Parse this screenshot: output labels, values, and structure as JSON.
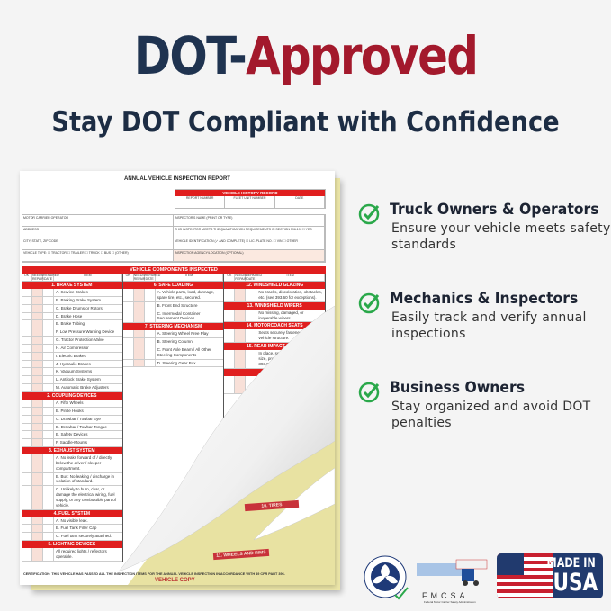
{
  "headline": {
    "part1": "DOT-",
    "part2": "Approved"
  },
  "subheadline": "Stay DOT Compliant with Confidence",
  "colors": {
    "navy": "#1f3350",
    "crimson": "#a3192c",
    "check": "#2aa84a",
    "form_red": "#e01e1e"
  },
  "form": {
    "title": "ANNUAL VEHICLE INSPECTION REPORT",
    "history": {
      "title": "VEHICLE HISTORY RECORD",
      "cols": [
        "REPORT NUMBER",
        "FLEET UNIT NUMBER",
        "DATE"
      ]
    },
    "fields": [
      "MOTOR CARRIER OPERATOR",
      "INSPECTOR'S NAME (PRINT OR TYPE)",
      "ADDRESS",
      "THIS INSPECTOR MEETS THE QUALIFICATION REQUIREMENTS IN SECTION 396.19. ☐ YES",
      "CITY, STATE, ZIP CODE",
      "VEHICLE IDENTIFICATION (✓ AND COMPLETE) ☐ LIC. PLATE NO. ☐ VIN ☐ OTHER",
      "VEHICLE TYPE: ☐ TRACTOR ☐ TRAILER ☐ TRUCK ☐ BUS ☐ (OTHER)",
      "INSPECTION AGENCY/LOCATION (OPTIONAL)"
    ],
    "components_title": "VEHICLE COMPONENTS INSPECTED",
    "col_headers": [
      "OK",
      "NEEDS REPAIR",
      "REPAIRED DATE",
      "ITEM"
    ],
    "columns": [
      [
        {
          "section": "1. BRAKE SYSTEM",
          "items": [
            "A. Service Brakes",
            "B. Parking Brake System",
            "C. Brake Drums or Rotors",
            "D. Brake Hose",
            "E. Brake Tubing",
            "F. Low Pressure Warning Device",
            "G. Tractor Protection Valve",
            "H. Air Compressor",
            "I. Electric Brakes",
            "J. Hydraulic Brakes",
            "K. Vacuum Systems",
            "L. Antilock Brake System",
            "M. Automatic Brake Adjusters"
          ]
        },
        {
          "section": "2. COUPLING DEVICES",
          "items": [
            "A. Fifth Wheels",
            "B. Pintle Hooks",
            "C. Drawbar / Towbar Eye",
            "D. Drawbar / Towbar Tongue",
            "E. Safety Devices",
            "F. Saddle-Mounts"
          ]
        },
        {
          "section": "3. EXHAUST SYSTEM",
          "items": [
            "A. No leaks forward of / directly below the driver / sleeper compartment.",
            "B. Bus: No leaking / discharge in violation of standard.",
            "C. Unlikely to burn, char, or damage the electrical wiring, fuel supply, or any combustible part of vehicle."
          ]
        },
        {
          "section": "4. FUEL SYSTEM",
          "items": [
            "A. No visible leak.",
            "B. Fuel Tank Filler Cap",
            "C. Fuel tank securely attached."
          ]
        },
        {
          "section": "5. LIGHTING DEVICES",
          "items": [
            "All required lights / reflectors operable."
          ]
        }
      ],
      [
        {
          "section": "6. SAFE LOADING",
          "items": [
            "A. Vehicle parts, load, dunnage, spare tire, etc., secured.",
            "B. Front End Structure",
            "C. Intermodal Container Securement Devices"
          ]
        },
        {
          "section": "7. STEERING MECHANISM",
          "items": [
            "A. Steering Wheel Free Play",
            "B. Steering Column",
            "C. Front Axle Beam / All Other Steering Components",
            "D. Steering Gear Box"
          ]
        }
      ],
      [
        {
          "section": "12. WINDSHIELD GLAZING",
          "items": [
            "No cracks, discoloration, obstacles, etc. (see 393.60 for exceptions)."
          ]
        },
        {
          "section": "13. WINDSHIELD WIPERS",
          "items": [
            "No missing, damaged, or inoperable wipers."
          ]
        },
        {
          "section": "14. MOTORCOACH SEATS",
          "items": [
            "Seats securely fastened to the vehicle structure."
          ]
        },
        {
          "section": "15. REAR IMPACT GUARD",
          "items": [
            "In place, securely attached, proper size, proper placement (see 393.86)."
          ]
        },
        {
          "section": "16. OTHER",
          "items": [
            "List any other condition(s) which may prevent safe operation of this vehicle."
          ]
        }
      ]
    ],
    "back_sections": [
      "10. TIRES",
      "11. WHEELS AND RIMS"
    ],
    "certification": "CERTIFICATION: THIS VEHICLE HAS PASSED ALL THE INSPECTION ITEMS FOR THE ANNUAL VEHICLE INSPECTION IN ACCORDANCE WITH 49 CFR PART 396.",
    "copy_label": "VEHICLE COPY"
  },
  "features": [
    {
      "title": "Truck Owners & Operators",
      "desc": "Ensure your vehicle meets safety standards",
      "icon": "check-circle-icon"
    },
    {
      "title": "Mechanics & Inspectors",
      "desc": "Easily track and verify annual inspections",
      "icon": "check-circle-icon"
    },
    {
      "title": "Business Owners",
      "desc": "Stay organized and avoid DOT penalties",
      "icon": "check-circle-icon"
    }
  ],
  "badges": {
    "dot_seal": "DEPARTMENT OF TRANSPORTATION · UNITED STATES OF AMERICA",
    "fmcsa": "FMCSA",
    "fmcsa_sub": "Federal Motor Carrier Safety Administration",
    "usa_line1": "MADE IN",
    "usa_line2": "USA"
  }
}
